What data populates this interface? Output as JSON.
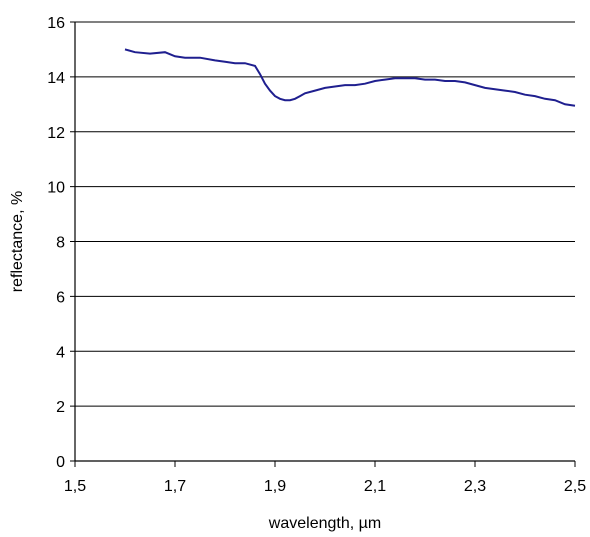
{
  "chart_data": {
    "type": "line",
    "title": "",
    "xlabel": "wavelength, µm",
    "ylabel": "reflectance, %",
    "xlim": [
      1.5,
      2.5
    ],
    "ylim": [
      0,
      16
    ],
    "x_ticks": [
      "1,5",
      "1,7",
      "1,9",
      "2,1",
      "2,3",
      "2,5"
    ],
    "x_tick_values": [
      1.5,
      1.7,
      1.9,
      2.1,
      2.3,
      2.5
    ],
    "y_ticks": [
      "0",
      "2",
      "4",
      "6",
      "8",
      "10",
      "12",
      "14",
      "16"
    ],
    "y_tick_values": [
      0,
      2,
      4,
      6,
      8,
      10,
      12,
      14,
      16
    ],
    "grid": "horizontal",
    "line_color": "#1f1f8f",
    "series": [
      {
        "x": [
          1.6,
          1.62,
          1.65,
          1.68,
          1.7,
          1.72,
          1.75,
          1.78,
          1.8,
          1.82,
          1.84,
          1.86,
          1.87,
          1.88,
          1.89,
          1.9,
          1.91,
          1.92,
          1.93,
          1.94,
          1.95,
          1.96,
          1.98,
          2.0,
          2.02,
          2.04,
          2.06,
          2.08,
          2.1,
          2.12,
          2.14,
          2.16,
          2.18,
          2.2,
          2.22,
          2.24,
          2.26,
          2.28,
          2.3,
          2.32,
          2.34,
          2.36,
          2.38,
          2.4,
          2.42,
          2.44,
          2.46,
          2.48,
          2.5
        ],
        "values": [
          15.0,
          14.9,
          14.85,
          14.9,
          14.75,
          14.7,
          14.7,
          14.6,
          14.55,
          14.5,
          14.5,
          14.4,
          14.1,
          13.75,
          13.5,
          13.3,
          13.2,
          13.15,
          13.15,
          13.2,
          13.3,
          13.4,
          13.5,
          13.6,
          13.65,
          13.7,
          13.7,
          13.75,
          13.85,
          13.9,
          13.95,
          13.95,
          13.95,
          13.9,
          13.9,
          13.85,
          13.85,
          13.8,
          13.7,
          13.6,
          13.55,
          13.5,
          13.45,
          13.35,
          13.3,
          13.2,
          13.15,
          13.0,
          12.95
        ]
      }
    ]
  }
}
